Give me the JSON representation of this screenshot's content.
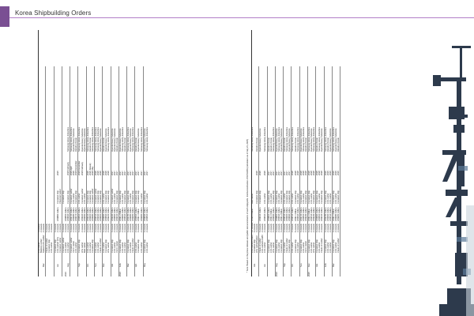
{
  "header": {
    "title": "Korea Shipbuilding Orders"
  },
  "left_table": [
    [
      "",
      "",
      "LNG carrier",
      "4 vessels",
      "",
      "",
      "",
      "",
      ""
    ],
    [
      "",
      "",
      "Bulk/ore carrier",
      "2 vessels",
      "",
      "",
      "",
      "",
      ""
    ],
    [
      "",
      "Mar.",
      "Tanker/ LPG carrier",
      "2 vessels",
      "",
      "",
      "",
      "",
      ""
    ],
    [
      "",
      "",
      "Crude oil carrier",
      "4 vessels",
      "",
      "",
      "",
      "",
      ""
    ],
    [
      "",
      "",
      "Container ship",
      "4 vessels",
      "",
      "",
      "",
      "",
      ""
    ],
    [
      "",
      "",
      "LNG carrier",
      "2 vessels",
      "",
      "",
      "",
      "",
      ""
    ],
    [
      "",
      "",
      "Container ship",
      "3 vessels",
      "",
      "",
      "",
      "",
      ""
    ],
    [
      "",
      "Jul.",
      "LNG carrier/ LPG",
      "2 vessels",
      "US$860 million",
      "Container ship",
      "2025",
      "",
      ""
    ],
    [
      "",
      "",
      "Container carrier",
      "2 vessels",
      "",
      "Chemical tanker",
      "",
      "",
      ""
    ],
    [
      "",
      "",
      "Container carrier",
      "4 vessels",
      "",
      "Container ship",
      "",
      "",
      ""
    ],
    [
      "2023",
      "",
      "LNG carrier",
      "3 vessels",
      "US$650 million",
      "",
      "",
      "",
      ""
    ],
    [
      "",
      "Aug.",
      "LNG carrier",
      "2 vessels",
      "US$640 million",
      "Container ship",
      "2026 February",
      "Samsung Heavy Industries",
      ""
    ],
    [
      "",
      "",
      "Container carrier",
      "4 vessels",
      "US$720 million",
      "Container carrier",
      "2026 April",
      "Samsung Heavy Industries",
      ""
    ],
    [
      "",
      "",
      "VLCC carrier",
      "2 vessels",
      "US$380 million",
      "LNG carrier",
      "2026",
      "Hyundai Heavy Industries",
      ""
    ],
    [
      "",
      "",
      "LNG carrier",
      "2 vessels",
      "US$470 million",
      "Container ship",
      "2026 December",
      "Hanwha Ocean",
      ""
    ],
    [
      "",
      "Sep.",
      "Container ship",
      "4 vessels",
      "US$500 million",
      "LNG carrier",
      "2026 December",
      "Samsung Heavy Industries",
      ""
    ],
    [
      "",
      "",
      "LPG carrier",
      "2 vessels",
      "US$420 million",
      "Container carrier",
      "2026 February",
      "Hyundai Heavy Industries",
      ""
    ],
    [
      "",
      "",
      "Bulk carrier",
      "4 vessels",
      "US$390 million",
      "LNG carrier",
      "",
      "Hyundai Heavy Industries",
      ""
    ],
    [
      "",
      "Oct.",
      "LNG carrier",
      "2 vessels",
      "US$410 million",
      "Container ship",
      "2026",
      "Samsung Heavy Industries",
      ""
    ],
    [
      "",
      "",
      "LNG carrier",
      "2 vessels",
      "US$400 million",
      "Container ship",
      "2026 January",
      "Hanwha Ocean",
      ""
    ],
    [
      "",
      "",
      "Container ship",
      "4 vessels",
      "US$480 million",
      "Container carrier",
      "2026 May",
      "Samsung Heavy Industries",
      ""
    ],
    [
      "",
      "Nov.",
      "LNG carrier",
      "3 vessels",
      "US$510 million",
      "Container carrier",
      "2026",
      "Samsung Heavy Industries",
      ""
    ],
    [
      "",
      "",
      "LNG carrier",
      "2 vessels",
      "US$430 million",
      "Container ship",
      "2026",
      "Samsung Heavy Industries",
      ""
    ],
    [
      "",
      "",
      "Crude oil carrier",
      "2 vessels",
      "US$300 million",
      "Container ship",
      "2026",
      "Hyundai Heavy Industries",
      ""
    ],
    [
      "",
      "Dec.",
      "LNG carrier",
      "4 vessels",
      "US$840 million",
      "LNG carrier",
      "2026",
      "Hanwha Ocean",
      ""
    ],
    [
      "",
      "",
      "Container ship",
      "4 vessels",
      "US$630 million",
      "Container ship",
      "2026",
      "Hyundai Heavy Industries",
      ""
    ],
    [
      "",
      "",
      "LPG carrier",
      "2 vessels",
      "US$220 million",
      "Container ship",
      "2026",
      "Samsung Heavy Industries",
      ""
    ],
    [
      "",
      "Jan.",
      "Container ship",
      "4 vessels",
      "US$440 million",
      "Container carrier",
      "2027",
      "Hyundai Heavy Industries",
      ""
    ],
    [
      "",
      "",
      "LNG carrier",
      "2 vessels",
      "US$560 million",
      "LNG carrier",
      "2027",
      "Hyundai Heavy Industries",
      ""
    ],
    [
      "",
      "",
      "VLCC carrier",
      "2 vessels",
      "US$310 million",
      "Container ship",
      "2027",
      "Hanwha Ocean",
      ""
    ],
    [
      "2024",
      "Feb.",
      "Container ship",
      "4 vessels",
      "US$1.2 billion",
      "Container ship",
      "2027",
      "Hyundai Heavy Industries",
      ""
    ],
    [
      "",
      "",
      "LNG carrier",
      "2 vessels",
      "US$460 million",
      "LNG carrier",
      "2027",
      "Samsung Heavy Industries",
      ""
    ],
    [
      "",
      "",
      "LNG carrier",
      "2 vessels",
      "US$520 million",
      "Container ship",
      "2027",
      "Hanwha Ocean",
      ""
    ],
    [
      "",
      "Mar.",
      "Container ship",
      "4 vessels",
      "US$780 million",
      "Container ship",
      "2027",
      "Samsung Heavy Industries",
      ""
    ],
    [
      "",
      "",
      "LNG carrier",
      "2 vessels",
      "US$480 million",
      "LNG carrier",
      "2027",
      "Hyundai Heavy Industries",
      ""
    ],
    [
      "",
      "",
      "Crude oil carrier",
      "2 vessels",
      "US$260 million",
      "Container ship",
      "2027",
      "Samsung Heavy Industries",
      ""
    ],
    [
      "",
      "Apr.",
      "LNG carrier",
      "2 vessels",
      "US$500 million",
      "Container ship",
      "2027",
      "Hanwha Ocean",
      ""
    ],
    [
      "",
      "",
      "Container ship",
      "4 vessels",
      "US$1.1 billion",
      "Container ship",
      "2027",
      "Hyundai Heavy Industries",
      ""
    ],
    [
      "",
      "",
      "LNG carrier",
      "2 vessels",
      "US$460 million",
      "LNG carrier",
      "2027",
      "Samsung Heavy Industries",
      ""
    ],
    [
      "",
      "May",
      "Container ship",
      "4 vessels",
      "US$640 million",
      "Container ship",
      "2027",
      "Hyundai Heavy Industries",
      ""
    ],
    [
      "",
      "",
      "LNG carrier",
      "2 vessels",
      "US$500 million",
      "LNG carrier",
      "2027",
      "Samsung Heavy Industries",
      ""
    ]
  ],
  "right_table": [
    [
      "",
      "",
      "LNG carrier/LNGBV",
      "12 vessels",
      "US$3.9 billion",
      "Bulk carrier",
      "",
      "Samsung Heavy Industries",
      ""
    ],
    [
      "",
      "Jun.",
      "Container ship",
      "4 vessels",
      "",
      "",
      "",
      "",
      ""
    ],
    [
      "",
      "",
      "LPG carrier/Tanker",
      "3 vessels",
      "",
      "Container ship",
      "2026",
      "Hanwha Ocean",
      ""
    ],
    [
      "",
      "",
      "Crude oil carrier",
      "4 vessels",
      "US$410 million",
      "Container ship",
      "2026",
      "Hyundai Heavy Industries",
      ""
    ],
    [
      "",
      "",
      "LNG carrier/LNGBV",
      "2 vessels",
      "",
      "",
      "",
      "",
      ""
    ],
    [
      "",
      "Jul.",
      "LNG carrier",
      "2 vessels",
      "US$520 million",
      "LNG carrier",
      "2026",
      "Samsung Heavy Industries",
      ""
    ],
    [
      "",
      "",
      "Container ship",
      "4 vessels",
      "US$600 million",
      "Container ship",
      "2027",
      "Hanwha Ocean",
      ""
    ],
    [
      "",
      "",
      "LNG carrier",
      "2 vessels",
      "US$1.0 billion",
      "LNG carrier",
      "2027",
      "Hanwha Ocean",
      ""
    ],
    [
      "",
      "",
      "LPG carrier",
      "4 vessels",
      "US$490 million",
      "Container ship",
      "2027",
      "Samsung Heavy Industries",
      ""
    ],
    [
      "2024",
      "Aug.",
      "Container ship",
      "4 vessels",
      "US$800 million",
      "Container ship",
      "2027",
      "Hyundai Heavy Industries",
      ""
    ],
    [
      "",
      "",
      "LNG carrier",
      "2 vessels",
      "US$520 million",
      "LNG carrier",
      "2027",
      "Samsung Heavy Industries",
      ""
    ],
    [
      "",
      "",
      "Container ship",
      "4 vessels",
      "US$1.2 billion",
      "Container ship",
      "2027",
      "Hyundai Heavy Industries",
      ""
    ],
    [
      "",
      "Sep.",
      "LNG carrier",
      "2 vessels",
      "US$510 million",
      "LNG carrier",
      "2027",
      "Hanwha Ocean",
      ""
    ],
    [
      "",
      "",
      "Crude oil carrier",
      "2 vessels",
      "US$300 million",
      "Container ship",
      "2027",
      "Samsung Heavy Industries",
      ""
    ],
    [
      "",
      "",
      "Container ship",
      "4 vessels",
      "US$640 million",
      "Container ship",
      "2027",
      "Hyundai Heavy Industries",
      ""
    ],
    [
      "",
      "Oct.",
      "LNG carrier",
      "2 vessels",
      "US$510 million",
      "LNG carrier",
      "2028",
      "Samsung Heavy Industries",
      ""
    ],
    [
      "",
      "",
      "Container ship",
      "6 vessels",
      "US$1.1 billion",
      "Container ship",
      "2028",
      "Hanwha Ocean",
      ""
    ],
    [
      "",
      "",
      "LNG carrier",
      "2 vessels",
      "US$520 million",
      "LNG carrier",
      "2028",
      "Samsung Heavy Industries",
      ""
    ],
    [
      "",
      "Nov.",
      "Container ship",
      "4 vessels",
      "US$720 million",
      "Container ship",
      "2028",
      "Hyundai Heavy Industries",
      ""
    ],
    [
      "",
      "",
      "LNG carrier",
      "2 vessels",
      "US$500 million",
      "LNG carrier",
      "2028",
      "Samsung Heavy Industries",
      ""
    ],
    [
      "",
      "",
      "VLCC carrier",
      "2 vessels",
      "US$240 million",
      "Container ship",
      "2028",
      "Hanwha Ocean",
      ""
    ],
    [
      "2025",
      "Dec.",
      "Container ship",
      "4 vessels",
      "US$1.0 billion",
      "Container ship",
      "2028",
      "Samsung Heavy Industries",
      ""
    ],
    [
      "",
      "",
      "LNG carrier",
      "2 vessels",
      "US$510 million",
      "LNG carrier",
      "2028",
      "Hyundai Heavy Industries",
      ""
    ],
    [
      "",
      "",
      "LPG carrier",
      "2 vessels",
      "US$240 million",
      "Container ship",
      "2028",
      "Samsung Heavy Industries",
      ""
    ],
    [
      "",
      "Jan.",
      "Container ship",
      "4 vessels",
      "US$840 million",
      "Container ship",
      "2028",
      "Hanwha Ocean",
      ""
    ],
    [
      "",
      "",
      "LNG carrier",
      "2 vessels",
      "US$500 million",
      "LNG carrier",
      "2028",
      "Samsung Heavy Industries",
      ""
    ],
    [
      "",
      "",
      "Crude oil carrier",
      "2 vessels",
      "US$310 million",
      "Container ship",
      "2028",
      "Hyundai Heavy Industries",
      ""
    ],
    [
      "",
      "Feb.",
      "Container ship",
      "4 vessels",
      "US$780 million",
      "Container ship",
      "2029",
      "Samsung Heavy Industries",
      ""
    ],
    [
      "",
      "",
      "LNG carrier",
      "2 vessels",
      "US$490 million",
      "LNG carrier",
      "2029",
      "Hanwha Ocean",
      ""
    ],
    [
      "",
      "",
      "LNG carrier",
      "2 vessels",
      "US$510 million",
      "LNG carrier",
      "2029",
      "Hyundai Heavy Industries",
      ""
    ],
    [
      "",
      "Mar.",
      "Container ship",
      "4 vessels",
      "US$1.1 billion",
      "Container ship",
      "2029",
      "Samsung Heavy Industries",
      ""
    ],
    [
      "",
      "",
      "LNG carrier",
      "2 vessels",
      "US$480 million",
      "LNG carrier",
      "2029",
      "Hyundai Heavy Industries",
      ""
    ],
    [
      "",
      "",
      "Crude oil carrier",
      "2 vessels",
      "US$260 million",
      "Container ship",
      "2029",
      "Hanwha Ocean",
      ""
    ]
  ],
  "note": "* Note: Based on the press releases and public announcements of each shipyards. Internal estimation of KOSHIPA (calculation as of July 21, 2025)",
  "colors": {
    "accent": "#7a4f93",
    "rule": "#b27fc7"
  },
  "photo": {
    "icon": "shipyard-crane-photo"
  }
}
